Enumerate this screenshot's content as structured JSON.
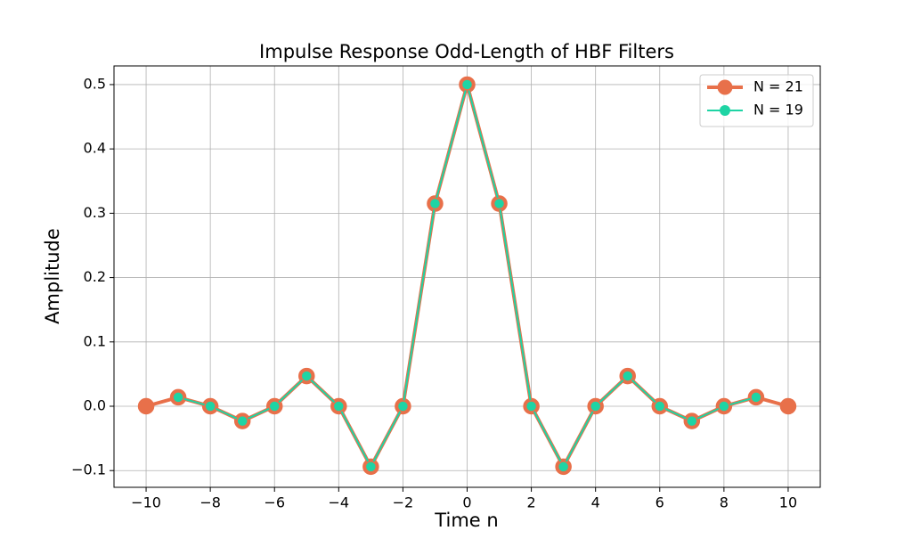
{
  "chart_data": {
    "type": "line",
    "title": "Impulse Response Odd-Length of HBF Filters",
    "xlabel": "Time n",
    "ylabel": "Amplitude",
    "series": [
      {
        "name": "N = 21",
        "color": "#e8704a",
        "x": [
          -10,
          -9,
          -8,
          -7,
          -6,
          -5,
          -4,
          -3,
          -2,
          -1,
          0,
          1,
          2,
          3,
          4,
          5,
          6,
          7,
          8,
          9,
          10
        ],
        "values": [
          0,
          0.014,
          0,
          -0.023,
          0,
          0.047,
          0,
          -0.094,
          0,
          0.315,
          0.5,
          0.315,
          0,
          -0.094,
          0,
          0.047,
          0,
          -0.023,
          0,
          0.014,
          0
        ]
      },
      {
        "name": "N = 19",
        "color": "#1ed4a4",
        "x": [
          -9,
          -8,
          -7,
          -6,
          -5,
          -4,
          -3,
          -2,
          -1,
          0,
          1,
          2,
          3,
          4,
          5,
          6,
          7,
          8,
          9
        ],
        "values": [
          0.014,
          0,
          -0.023,
          0,
          0.047,
          0,
          -0.094,
          0,
          0.315,
          0.5,
          0.315,
          0,
          -0.094,
          0,
          0.047,
          0,
          -0.023,
          0,
          0.014
        ]
      }
    ],
    "xlim": [
      -11,
      11
    ],
    "ylim": [
      -0.126,
      0.529
    ],
    "xticks": [
      {
        "value": -10,
        "label": "−10"
      },
      {
        "value": -8,
        "label": "−8"
      },
      {
        "value": -6,
        "label": "−6"
      },
      {
        "value": -4,
        "label": "−4"
      },
      {
        "value": -2,
        "label": "−2"
      },
      0,
      2,
      4,
      6,
      8,
      10
    ],
    "yticks": [
      {
        "value": -0.1,
        "label": "−0.1"
      },
      {
        "value": 0,
        "label": "0.0"
      },
      0.1,
      0.2,
      0.3,
      0.4,
      0.5
    ],
    "grid": true,
    "legend": "upper right"
  }
}
